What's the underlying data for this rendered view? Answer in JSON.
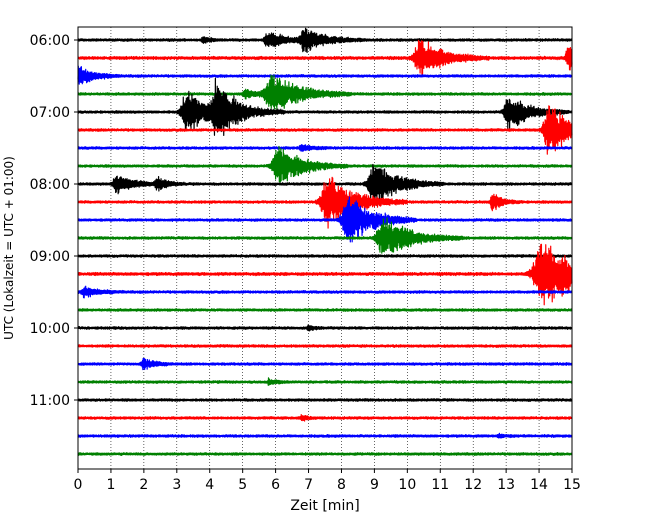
{
  "chart_data": {
    "type": "line",
    "title": "",
    "xlabel": "Zeit  [min]",
    "ylabel": "UTC (Lokalzeit = UTC + 01:00)",
    "xlim": [
      0,
      15
    ],
    "x_ticks": [
      "0",
      "1",
      "2",
      "3",
      "4",
      "5",
      "6",
      "7",
      "8",
      "9",
      "10",
      "11",
      "12",
      "13",
      "14",
      "15"
    ],
    "y_tick_labels": [
      "06:00",
      "07:00",
      "08:00",
      "09:00",
      "10:00",
      "11:00"
    ],
    "grid": {
      "x": true,
      "y": false,
      "style": "dotted"
    },
    "trace_interval_min": 15,
    "trace_start": "06:00",
    "trace_colors": [
      "#000000",
      "#ff0000",
      "#0000ff",
      "#008000"
    ],
    "traces": [
      {
        "start": "06:00",
        "color": "#000000",
        "noise": 1.0,
        "events": [
          {
            "t": 5.8,
            "amp": 10,
            "dur": 0.5
          },
          {
            "t": 6.9,
            "amp": 14,
            "dur": 0.6
          },
          {
            "t": 3.8,
            "amp": 4,
            "dur": 0.2
          }
        ]
      },
      {
        "start": "06:15",
        "color": "#ff0000",
        "noise": 1.2,
        "events": [
          {
            "t": 10.4,
            "amp": 22,
            "dur": 0.7
          },
          {
            "t": 14.9,
            "amp": 18,
            "dur": 0.3
          }
        ]
      },
      {
        "start": "06:30",
        "color": "#0000ff",
        "noise": 1.0,
        "events": [
          {
            "t": 0.05,
            "amp": 12,
            "dur": 0.4
          }
        ]
      },
      {
        "start": "06:45",
        "color": "#008000",
        "noise": 1.0,
        "events": [
          {
            "t": 5.9,
            "amp": 24,
            "dur": 0.8
          },
          {
            "t": 5.1,
            "amp": 6,
            "dur": 0.3
          }
        ]
      },
      {
        "start": "07:00",
        "color": "#000000",
        "noise": 1.0,
        "events": [
          {
            "t": 3.3,
            "amp": 26,
            "dur": 0.6
          },
          {
            "t": 4.2,
            "amp": 28,
            "dur": 0.7
          },
          {
            "t": 13.1,
            "amp": 20,
            "dur": 0.6
          }
        ]
      },
      {
        "start": "07:15",
        "color": "#ff0000",
        "noise": 1.0,
        "events": [
          {
            "t": 14.3,
            "amp": 32,
            "dur": 0.6
          }
        ]
      },
      {
        "start": "07:30",
        "color": "#0000ff",
        "noise": 1.0,
        "events": [
          {
            "t": 6.8,
            "amp": 4,
            "dur": 0.3
          }
        ]
      },
      {
        "start": "07:45",
        "color": "#008000",
        "noise": 1.0,
        "events": [
          {
            "t": 6.1,
            "amp": 24,
            "dur": 0.7
          }
        ]
      },
      {
        "start": "08:00",
        "color": "#000000",
        "noise": 1.0,
        "events": [
          {
            "t": 1.2,
            "amp": 10,
            "dur": 0.5
          },
          {
            "t": 2.4,
            "amp": 8,
            "dur": 0.3
          },
          {
            "t": 9.0,
            "amp": 26,
            "dur": 0.7
          }
        ]
      },
      {
        "start": "08:15",
        "color": "#ff0000",
        "noise": 1.0,
        "events": [
          {
            "t": 7.6,
            "amp": 30,
            "dur": 0.8
          },
          {
            "t": 12.6,
            "amp": 10,
            "dur": 0.3
          }
        ]
      },
      {
        "start": "08:30",
        "color": "#0000ff",
        "noise": 1.0,
        "events": [
          {
            "t": 8.2,
            "amp": 30,
            "dur": 0.7
          }
        ]
      },
      {
        "start": "08:45",
        "color": "#008000",
        "noise": 1.0,
        "events": [
          {
            "t": 9.3,
            "amp": 24,
            "dur": 0.8
          }
        ]
      },
      {
        "start": "09:00",
        "color": "#000000",
        "noise": 1.0,
        "events": []
      },
      {
        "start": "09:15",
        "color": "#ff0000",
        "noise": 1.2,
        "events": [
          {
            "t": 14.1,
            "amp": 40,
            "dur": 1.0
          }
        ]
      },
      {
        "start": "09:30",
        "color": "#0000ff",
        "noise": 1.0,
        "events": [
          {
            "t": 0.2,
            "amp": 6,
            "dur": 0.4
          }
        ]
      },
      {
        "start": "09:45",
        "color": "#008000",
        "noise": 1.0,
        "events": []
      },
      {
        "start": "10:00",
        "color": "#000000",
        "noise": 1.0,
        "events": [
          {
            "t": 7.0,
            "amp": 3,
            "dur": 0.2
          }
        ]
      },
      {
        "start": "10:15",
        "color": "#ff0000",
        "noise": 1.0,
        "events": []
      },
      {
        "start": "10:30",
        "color": "#0000ff",
        "noise": 1.0,
        "events": [
          {
            "t": 2.0,
            "amp": 7,
            "dur": 0.3
          }
        ]
      },
      {
        "start": "10:45",
        "color": "#008000",
        "noise": 1.0,
        "events": [
          {
            "t": 5.8,
            "amp": 4,
            "dur": 0.2
          }
        ]
      },
      {
        "start": "11:00",
        "color": "#000000",
        "noise": 1.0,
        "events": []
      },
      {
        "start": "11:15",
        "color": "#ff0000",
        "noise": 1.0,
        "events": [
          {
            "t": 6.8,
            "amp": 3,
            "dur": 0.2
          }
        ]
      },
      {
        "start": "11:30",
        "color": "#0000ff",
        "noise": 1.0,
        "events": [
          {
            "t": 12.8,
            "amp": 2,
            "dur": 0.2
          }
        ]
      },
      {
        "start": "11:45",
        "color": "#008000",
        "noise": 1.0,
        "events": []
      }
    ]
  }
}
